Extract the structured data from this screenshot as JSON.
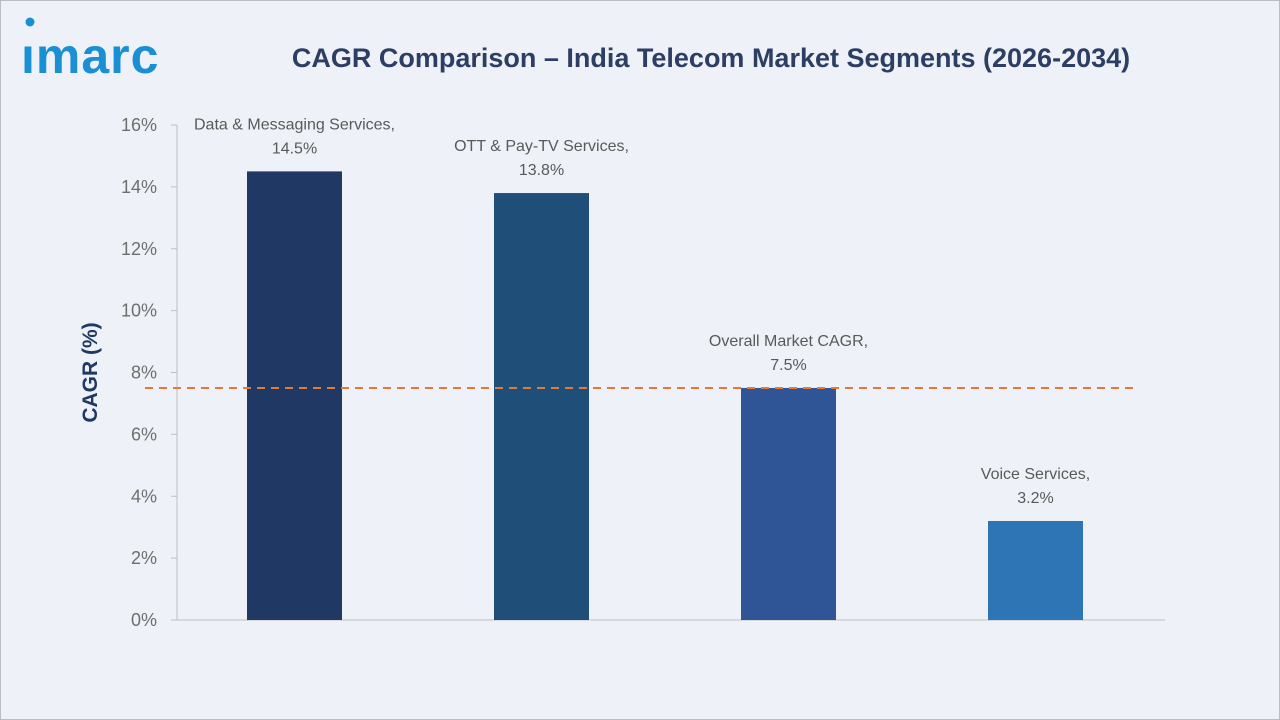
{
  "header": {
    "logo_text": "imarc",
    "title": "CAGR Comparison – India Telecom Market Segments (2026-2034)"
  },
  "colors": {
    "title": "#2c3e63",
    "logo": "#1b8fd3",
    "reference_line": "#e07a3a"
  },
  "chart_data": {
    "type": "bar",
    "title": "CAGR Comparison – India Telecom Market Segments (2026-2034)",
    "xlabel": "",
    "ylabel": "CAGR (%)",
    "ylim": [
      0,
      16
    ],
    "yticks": [
      0,
      2,
      4,
      6,
      8,
      10,
      12,
      14,
      16
    ],
    "ytick_labels": [
      "0%",
      "2%",
      "4%",
      "6%",
      "8%",
      "10%",
      "12%",
      "14%",
      "16%"
    ],
    "grid": false,
    "legend": "none",
    "categories": [
      "Data & Messaging Services",
      "OTT & Pay-TV Services",
      "Overall Market CAGR",
      "Voice Services"
    ],
    "values": [
      14.5,
      13.8,
      7.5,
      3.2
    ],
    "data_labels": [
      [
        "Data & Messaging Services,",
        "14.5%"
      ],
      [
        "OTT & Pay-TV Services,",
        "13.8%"
      ],
      [
        "Overall Market CAGR,",
        "7.5%"
      ],
      [
        "Voice Services,",
        "3.2%"
      ]
    ],
    "bar_colors": [
      "#1f3864",
      "#1f4e79",
      "#2f5597",
      "#2e75b6"
    ],
    "reference_line": {
      "value": 7.5,
      "style": "dashed"
    }
  }
}
